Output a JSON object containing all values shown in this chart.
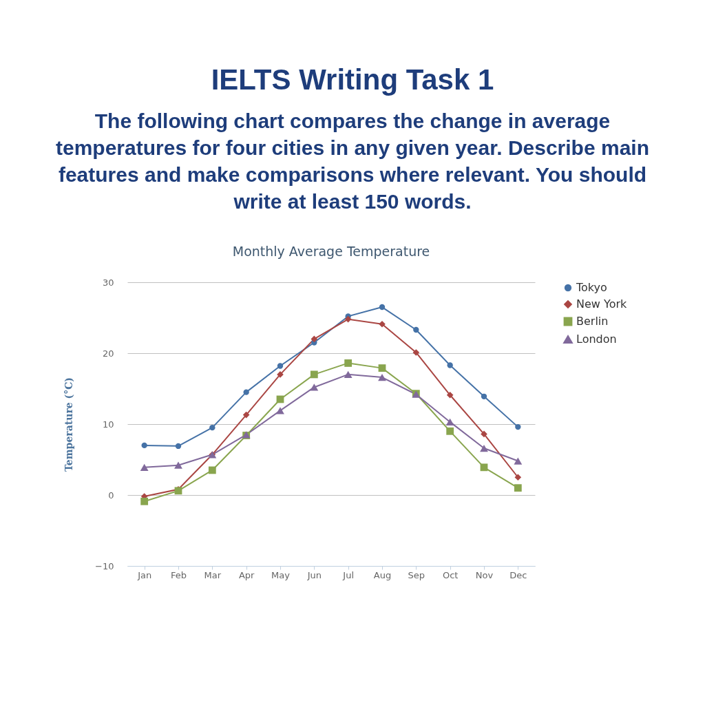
{
  "chart_data": {
    "type": "line",
    "title": "Monthly Average Temperature",
    "ylabel": "Temperature (°C)",
    "annotations": [
      "IELTS Writing Task 1",
      "The following chart compares the change in average temperatures for four cities in any given year. Describe main features and make comparisons where relevant. You should write at least 150 words."
    ],
    "categories": [
      "Jan",
      "Feb",
      "Mar",
      "Apr",
      "May",
      "Jun",
      "Jul",
      "Aug",
      "Sep",
      "Oct",
      "Nov",
      "Dec"
    ],
    "series": [
      {
        "name": "Tokyo",
        "color": "#4572a7",
        "marker": "circle",
        "values": [
          7.0,
          6.9,
          9.5,
          14.5,
          18.2,
          21.5,
          25.2,
          26.5,
          23.3,
          18.3,
          13.9,
          9.6
        ]
      },
      {
        "name": "New York",
        "color": "#aa4643",
        "marker": "diamond",
        "values": [
          -0.2,
          0.8,
          5.7,
          11.3,
          17.0,
          22.0,
          24.8,
          24.1,
          20.1,
          14.1,
          8.6,
          2.5
        ]
      },
      {
        "name": "Berlin",
        "color": "#89a54e",
        "marker": "square",
        "values": [
          -0.9,
          0.6,
          3.5,
          8.4,
          13.5,
          17.0,
          18.6,
          17.9,
          14.3,
          9.0,
          3.9,
          1.0
        ]
      },
      {
        "name": "London",
        "color": "#80699b",
        "marker": "triangle",
        "values": [
          3.9,
          4.2,
          5.7,
          8.5,
          11.9,
          15.2,
          17.0,
          16.6,
          14.2,
          10.3,
          6.6,
          4.8
        ]
      }
    ],
    "ylim": [
      -10,
      30
    ],
    "yticks": [
      -10,
      0,
      10,
      20,
      30
    ],
    "grid": "y",
    "legend": "right",
    "line_style": "solid"
  }
}
